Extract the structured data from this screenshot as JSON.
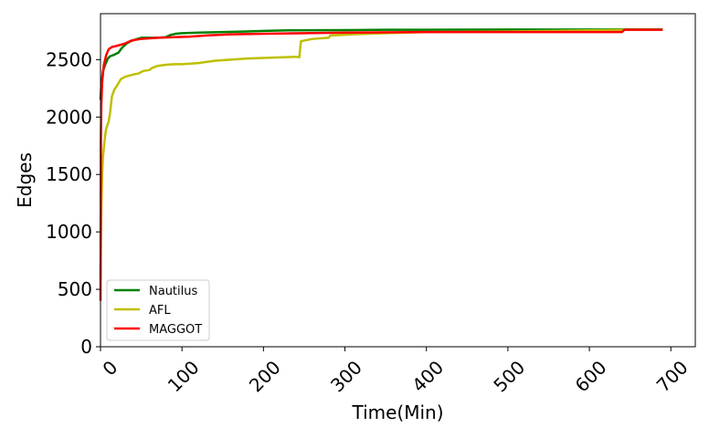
{
  "chart_data": {
    "type": "line",
    "xlabel": "Time(Min)",
    "ylabel": "Edges",
    "xlim": [
      0,
      730
    ],
    "ylim": [
      0,
      2900
    ],
    "xticks": [
      0,
      100,
      200,
      300,
      400,
      500,
      600,
      700
    ],
    "yticks": [
      0,
      500,
      1000,
      1500,
      2000,
      2500
    ],
    "xtick_labels": [
      "0",
      "100",
      "200",
      "300",
      "400",
      "500",
      "600",
      "700"
    ],
    "ytick_labels": [
      "0",
      "500",
      "1000",
      "1500",
      "2000",
      "2500"
    ],
    "grid": false,
    "legend_position": "lower-left",
    "series": [
      {
        "name": "Nautilus",
        "color": "#008000",
        "x": [
          0,
          1,
          3,
          6,
          9,
          12,
          16,
          22,
          26,
          32,
          37,
          45,
          50,
          60,
          70,
          80,
          86,
          92,
          100,
          120,
          150,
          180,
          200,
          230,
          300,
          350,
          400,
          500,
          600,
          650,
          690
        ],
        "y": [
          2150,
          2280,
          2400,
          2460,
          2510,
          2530,
          2540,
          2560,
          2600,
          2640,
          2660,
          2680,
          2690,
          2690,
          2690,
          2695,
          2715,
          2725,
          2730,
          2735,
          2740,
          2745,
          2750,
          2755,
          2757,
          2760,
          2760,
          2762,
          2762,
          2763,
          2763
        ]
      },
      {
        "name": "AFL",
        "color": "#BFBF00",
        "x": [
          0,
          1,
          2,
          3,
          5,
          7,
          10,
          12,
          14,
          17,
          20,
          25,
          30,
          35,
          40,
          47,
          52,
          60,
          64,
          70,
          80,
          90,
          100,
          120,
          140,
          160,
          180,
          200,
          220,
          240,
          244,
          246,
          260,
          280,
          282,
          310,
          350,
          400,
          500,
          550,
          600,
          650,
          690
        ],
        "y": [
          600,
          1200,
          1500,
          1650,
          1800,
          1900,
          1960,
          2050,
          2180,
          2240,
          2270,
          2330,
          2350,
          2360,
          2370,
          2380,
          2400,
          2410,
          2430,
          2445,
          2455,
          2460,
          2460,
          2470,
          2490,
          2500,
          2510,
          2515,
          2520,
          2525,
          2520,
          2660,
          2680,
          2690,
          2710,
          2720,
          2730,
          2740,
          2745,
          2750,
          2755,
          2760,
          2760
        ]
      },
      {
        "name": "MAGGOT",
        "color": "#FF0000",
        "x": [
          0,
          0.5,
          1,
          2,
          4,
          7,
          10,
          14,
          20,
          30,
          36,
          40,
          50,
          70,
          90,
          110,
          130,
          160,
          200,
          300,
          400,
          500,
          600,
          640,
          643,
          660,
          690
        ],
        "y": [
          400,
          1800,
          2100,
          2300,
          2450,
          2540,
          2590,
          2610,
          2620,
          2640,
          2660,
          2670,
          2680,
          2690,
          2695,
          2700,
          2710,
          2720,
          2725,
          2735,
          2740,
          2740,
          2740,
          2740,
          2760,
          2760,
          2760
        ]
      }
    ]
  }
}
